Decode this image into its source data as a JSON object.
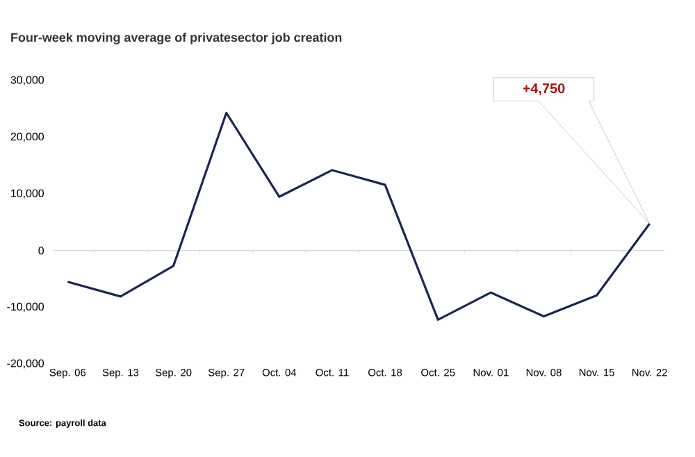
{
  "chart_data": {
    "type": "line",
    "subtitle": "Four-week moving average of privatesector job creation",
    "categories": [
      "Sep. 06",
      "Sep. 13",
      "Sep. 20",
      "Sep. 27",
      "Oct. 04",
      "Oct. 11",
      "Oct. 18",
      "Oct. 25",
      "Nov. 01",
      "Nov. 08",
      "Nov. 15",
      "Nov. 22"
    ],
    "series": [
      {
        "color": "#1a2650",
        "values": [
          -5500,
          -8100,
          -2700,
          24300,
          9500,
          14200,
          11600,
          -12200,
          -7400,
          -11600,
          -7900,
          4750
        ]
      }
    ],
    "ylim": [
      -20000,
      30000
    ],
    "yticks": [
      {
        "value": -20000,
        "label": "-20,000"
      },
      {
        "value": -10000,
        "label": "-10,000"
      },
      0,
      {
        "value": 10000,
        "label": "10,000"
      },
      {
        "value": 20000,
        "label": "20,000"
      },
      {
        "value": 30000,
        "label": "30,000"
      }
    ],
    "annotations": [
      "+4,750",
      "Source: payroll data"
    ],
    "marker": "none",
    "line_style": "solid"
  }
}
